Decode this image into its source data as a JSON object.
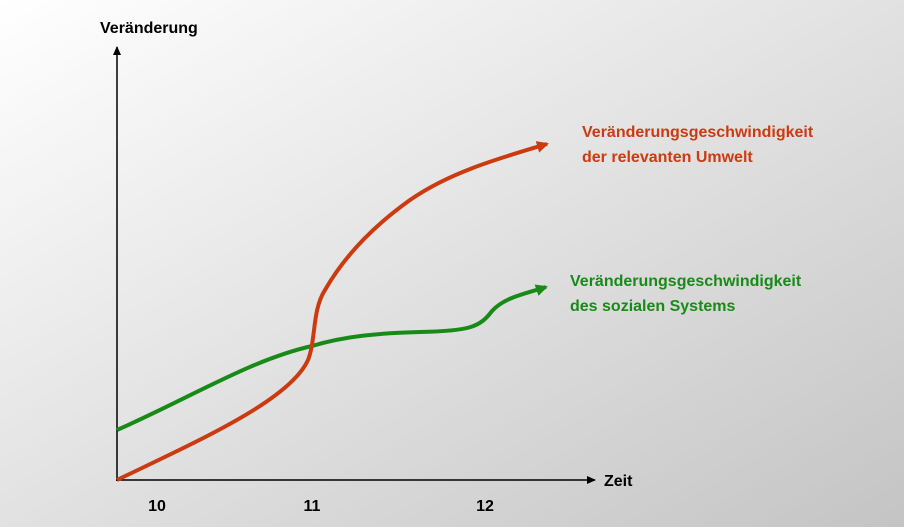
{
  "y_axis_label": "Veränderung",
  "x_axis_label": "Zeit",
  "x_ticks": [
    "10",
    "11",
    "12"
  ],
  "curves": [
    {
      "label_lines": [
        "Veränderungsgeschwindigkeit",
        "der relevanten Umwelt"
      ],
      "color": "#cc3a10"
    },
    {
      "label_lines": [
        "Veränderungsgeschwindigkeit",
        "des sozialen Systems"
      ],
      "color": "#188a18"
    }
  ]
}
